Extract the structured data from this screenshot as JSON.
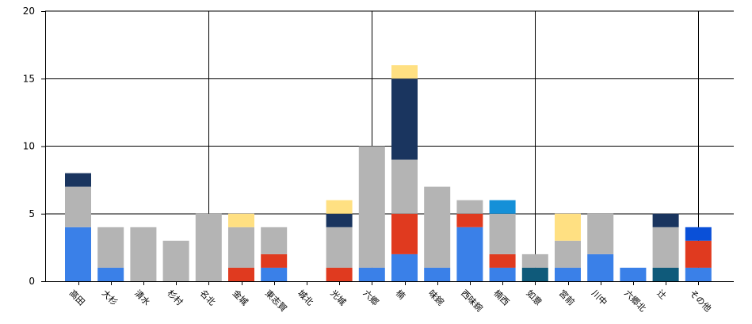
{
  "colors": {
    "blue": "#3a80e8",
    "gray": "#b4b4b4",
    "navy": "#1a355f",
    "red": "#e03a1f",
    "yellow": "#ffe082",
    "sky": "#1590d8",
    "teal": "#0f5a7a",
    "royal": "#0a50d8"
  },
  "chart_data": {
    "type": "bar",
    "stacked": true,
    "grid": true,
    "ylim": [
      0,
      20
    ],
    "yticks": [
      0,
      5,
      10,
      15,
      20
    ],
    "categories": [
      "高田",
      "大杉",
      "清水",
      "杉村",
      "名北",
      "金城",
      "東志賀",
      "城北",
      "光城",
      "六郷",
      "楠",
      "味鋺",
      "西味鋺",
      "楠西",
      "如意",
      "宮前",
      "川中",
      "六郷北",
      "辻",
      "その他"
    ],
    "stacks": [
      [
        {
          "value": 4,
          "color": "blue"
        },
        {
          "value": 3,
          "color": "gray"
        },
        {
          "value": 1,
          "color": "navy"
        }
      ],
      [
        {
          "value": 1,
          "color": "blue"
        },
        {
          "value": 3,
          "color": "gray"
        }
      ],
      [
        {
          "value": 4,
          "color": "gray"
        }
      ],
      [
        {
          "value": 3,
          "color": "gray"
        }
      ],
      [
        {
          "value": 5,
          "color": "gray"
        }
      ],
      [
        {
          "value": 1,
          "color": "red"
        },
        {
          "value": 3,
          "color": "gray"
        },
        {
          "value": 1,
          "color": "yellow"
        }
      ],
      [
        {
          "value": 1,
          "color": "blue"
        },
        {
          "value": 1,
          "color": "red"
        },
        {
          "value": 2,
          "color": "gray"
        }
      ],
      [],
      [
        {
          "value": 1,
          "color": "red"
        },
        {
          "value": 3,
          "color": "gray"
        },
        {
          "value": 1,
          "color": "navy"
        },
        {
          "value": 1,
          "color": "yellow"
        }
      ],
      [
        {
          "value": 1,
          "color": "blue"
        },
        {
          "value": 9,
          "color": "gray"
        }
      ],
      [
        {
          "value": 2,
          "color": "blue"
        },
        {
          "value": 3,
          "color": "red"
        },
        {
          "value": 4,
          "color": "gray"
        },
        {
          "value": 6,
          "color": "navy"
        },
        {
          "value": 1,
          "color": "yellow"
        }
      ],
      [
        {
          "value": 1,
          "color": "blue"
        },
        {
          "value": 6,
          "color": "gray"
        }
      ],
      [
        {
          "value": 4,
          "color": "blue"
        },
        {
          "value": 1,
          "color": "red"
        },
        {
          "value": 1,
          "color": "gray"
        }
      ],
      [
        {
          "value": 1,
          "color": "blue"
        },
        {
          "value": 1,
          "color": "red"
        },
        {
          "value": 3,
          "color": "gray"
        },
        {
          "value": 1,
          "color": "sky"
        }
      ],
      [
        {
          "value": 1,
          "color": "teal"
        },
        {
          "value": 1,
          "color": "gray"
        }
      ],
      [
        {
          "value": 1,
          "color": "blue"
        },
        {
          "value": 2,
          "color": "gray"
        },
        {
          "value": 2,
          "color": "yellow"
        }
      ],
      [
        {
          "value": 2,
          "color": "blue"
        },
        {
          "value": 3,
          "color": "gray"
        }
      ],
      [
        {
          "value": 1,
          "color": "blue"
        }
      ],
      [
        {
          "value": 1,
          "color": "teal"
        },
        {
          "value": 3,
          "color": "gray"
        },
        {
          "value": 1,
          "color": "navy"
        }
      ],
      [
        {
          "value": 1,
          "color": "blue"
        },
        {
          "value": 2,
          "color": "red"
        },
        {
          "value": 1,
          "color": "royal"
        }
      ]
    ]
  }
}
